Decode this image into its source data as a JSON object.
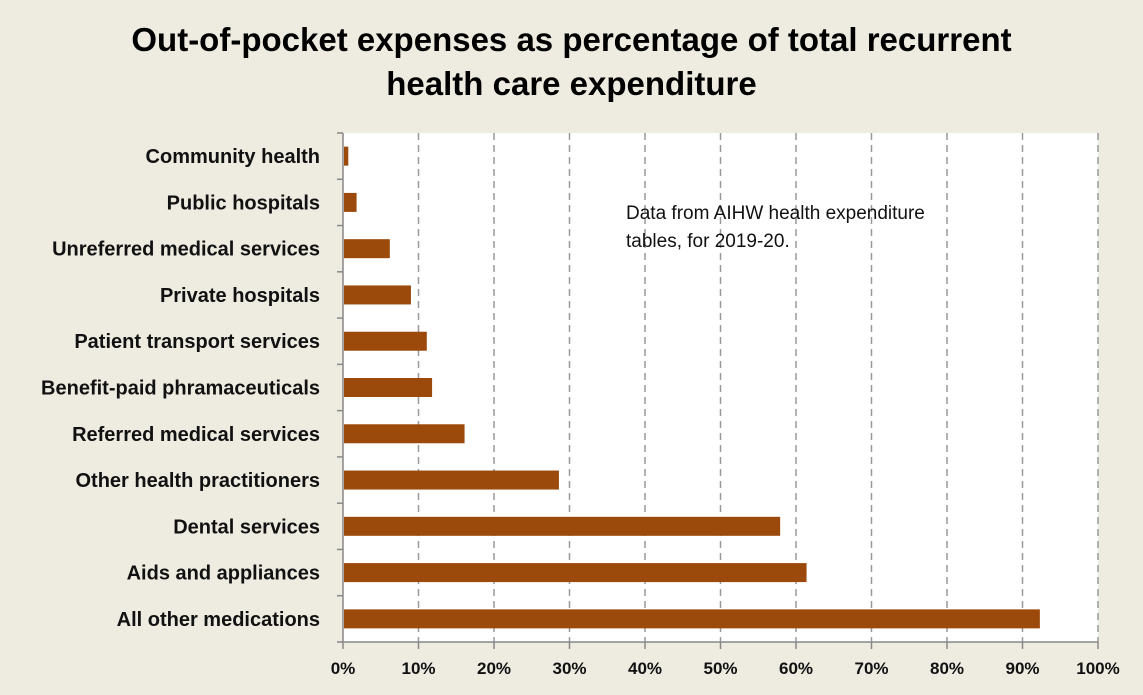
{
  "title_line1": "Out-of-pocket expenses as percentage of total recurrent",
  "title_line2": "health care expenditure",
  "annotation_line1": "Data from AIHW health expenditure",
  "annotation_line2": "tables, for 2019-20.",
  "colors": {
    "bar": "#9C4A0C",
    "background": "#EEEBE0",
    "plot": "#FFFFFF",
    "grid": "#999999"
  },
  "chart_data": {
    "type": "bar",
    "orientation": "horizontal",
    "title": "Out-of-pocket expenses as percentage of total recurrent health care expenditure",
    "categories": [
      "Community health",
      "Public hospitals",
      "Unreferred medical services",
      "Private hospitals",
      "Patient transport services",
      "Benefit-paid phramaceuticals",
      "Referred medical services",
      "Other health practitioners",
      "Dental services",
      "Aids and appliances",
      "All other medications"
    ],
    "values": [
      0.7,
      1.8,
      6.2,
      9.0,
      11.1,
      11.8,
      16.1,
      28.6,
      57.9,
      61.4,
      92.3
    ],
    "unit": "%",
    "xlim": [
      0,
      100
    ],
    "xticks": [
      "0%",
      "10%",
      "20%",
      "30%",
      "40%",
      "50%",
      "60%",
      "70%",
      "80%",
      "90%",
      "100%"
    ],
    "grid": "vertical dashed",
    "legend": "none"
  }
}
